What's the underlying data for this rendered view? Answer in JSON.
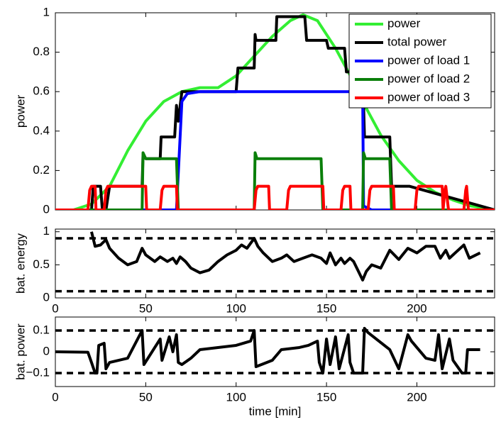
{
  "chart_data": [
    {
      "type": "line",
      "ylabel": "power",
      "xlim": [
        0,
        243
      ],
      "ylim": [
        0,
        1
      ],
      "xticks": [
        0,
        50,
        100,
        150,
        200
      ],
      "xtick_labels": false,
      "yticks": [
        0,
        0.2,
        0.4,
        0.6,
        0.8,
        1
      ],
      "legend": "upper right",
      "series": [
        {
          "name": "power",
          "color": "#33ee33",
          "x": [
            0,
            10,
            20,
            30,
            40,
            50,
            60,
            70,
            80,
            90,
            100,
            110,
            120,
            130,
            137,
            145,
            155,
            165,
            170,
            180,
            190,
            200,
            210,
            220,
            230,
            243
          ],
          "values": [
            0,
            0,
            0.03,
            0.12,
            0.3,
            0.45,
            0.55,
            0.6,
            0.62,
            0.62,
            0.68,
            0.78,
            0.88,
            0.96,
            0.99,
            0.96,
            0.82,
            0.65,
            0.55,
            0.38,
            0.25,
            0.15,
            0.09,
            0.05,
            0.02,
            0
          ]
        },
        {
          "name": "total power",
          "color": "#000000",
          "x": [
            0,
            20,
            21,
            25,
            26,
            28,
            30,
            48,
            48.5,
            50,
            58,
            58.5,
            66,
            67,
            68,
            70,
            100,
            101,
            110,
            110.5,
            111,
            122,
            122.5,
            138,
            139,
            150,
            151,
            160,
            161,
            170,
            171,
            185,
            186,
            196,
            243
          ],
          "values": [
            0,
            0,
            0.12,
            0.12,
            0,
            0,
            0.12,
            0.12,
            0.28,
            0.26,
            0.26,
            0.37,
            0.37,
            0.53,
            0.45,
            0.6,
            0.6,
            0.72,
            0.72,
            0.89,
            0.86,
            0.86,
            0.98,
            0.98,
            0.86,
            0.86,
            0.82,
            0.82,
            0.7,
            0.7,
            0.37,
            0.37,
            0.12,
            0.12,
            0
          ]
        },
        {
          "name": "power of load 1",
          "color": "#0000ff",
          "x": [
            0,
            67,
            70,
            73,
            80,
            170,
            170.5,
            175,
            243
          ],
          "values": [
            0,
            0,
            0.55,
            0.59,
            0.6,
            0.6,
            0.02,
            0,
            0
          ]
        },
        {
          "name": "power of load 2",
          "color": "#0a7f0a",
          "x": [
            0,
            48,
            48.5,
            50,
            67,
            68,
            110,
            110.5,
            111.5,
            147,
            148,
            170,
            170.5,
            171.5,
            185,
            186,
            243
          ],
          "values": [
            0,
            0,
            0.29,
            0.26,
            0.26,
            0,
            0,
            0.29,
            0.26,
            0.26,
            0,
            0,
            0.29,
            0.26,
            0.26,
            0,
            0
          ]
        },
        {
          "name": "power of load 3",
          "color": "#ff0000",
          "x": [
            0,
            18,
            19,
            20,
            22,
            22.5,
            27,
            28,
            29,
            50,
            50.5,
            58,
            59,
            60,
            67,
            67.5,
            110,
            111,
            112,
            118,
            118.5,
            128,
            129,
            130,
            148,
            148.5,
            158,
            159,
            160,
            163,
            163.5,
            173,
            174,
            175,
            187,
            187.5,
            199,
            200,
            201,
            214,
            214.5,
            215.5,
            216,
            217.5,
            226,
            227,
            227.5,
            228.5,
            243
          ],
          "values": [
            0,
            0,
            0.1,
            0.12,
            0.12,
            0,
            0,
            0.1,
            0.12,
            0.12,
            0,
            0,
            0.1,
            0.12,
            0.12,
            0,
            0,
            0.1,
            0.12,
            0.12,
            0,
            0,
            0.1,
            0.12,
            0.12,
            0,
            0,
            0.1,
            0.12,
            0.12,
            0,
            0,
            0.1,
            0.12,
            0.12,
            0,
            0,
            0.1,
            0.12,
            0.12,
            0,
            0.1,
            0.12,
            0,
            0,
            0.1,
            0.12,
            0,
            0
          ]
        }
      ]
    },
    {
      "type": "line",
      "ylabel": "bat. energy",
      "xlim": [
        0,
        243
      ],
      "ylim": [
        0,
        1.04
      ],
      "xticks": [
        0,
        50,
        100,
        150,
        200
      ],
      "xtick_labels": true,
      "yticks": [
        0,
        0.5,
        1
      ],
      "hlines": [
        0.9,
        0.1
      ],
      "series": [
        {
          "color": "#000000",
          "x": [
            20,
            22,
            25,
            28,
            30,
            35,
            40,
            45,
            48,
            50,
            55,
            58,
            62,
            65,
            67,
            69,
            72,
            75,
            80,
            85,
            90,
            95,
            100,
            103,
            106,
            110,
            112,
            115,
            120,
            125,
            128,
            132,
            137,
            142,
            147,
            150,
            152,
            155,
            158,
            160,
            163,
            165,
            170,
            172,
            175,
            180,
            185,
            190,
            195,
            200,
            205,
            210,
            213,
            216,
            218,
            222,
            226,
            229,
            235
          ],
          "values": [
            1.0,
            0.78,
            0.8,
            0.88,
            0.75,
            0.6,
            0.5,
            0.55,
            0.75,
            0.65,
            0.55,
            0.62,
            0.55,
            0.6,
            0.52,
            0.62,
            0.55,
            0.45,
            0.38,
            0.42,
            0.55,
            0.65,
            0.72,
            0.8,
            0.75,
            0.9,
            0.78,
            0.68,
            0.55,
            0.6,
            0.65,
            0.55,
            0.6,
            0.65,
            0.6,
            0.52,
            0.68,
            0.5,
            0.6,
            0.52,
            0.6,
            0.55,
            0.27,
            0.4,
            0.5,
            0.45,
            0.72,
            0.58,
            0.75,
            0.68,
            0.78,
            0.78,
            0.6,
            0.72,
            0.6,
            0.7,
            0.8,
            0.6,
            0.68
          ]
        }
      ]
    },
    {
      "type": "line",
      "ylabel": "bat. power",
      "xlabel": "time [min]",
      "xlim": [
        0,
        243
      ],
      "ylim": [
        -0.163,
        0.163
      ],
      "xticks": [
        0,
        50,
        100,
        150,
        200
      ],
      "xtick_labels": true,
      "yticks": [
        {
          "value": -0.1,
          "label": "−0.1"
        },
        0,
        0.1
      ],
      "hlines": [
        0.1,
        -0.1
      ],
      "series": [
        {
          "color": "#000000",
          "x": [
            0,
            18,
            20,
            22,
            23,
            24,
            27,
            28,
            30,
            40,
            48,
            49,
            58,
            59,
            63,
            65,
            67,
            68,
            70,
            75,
            80,
            90,
            100,
            108,
            110,
            111,
            120,
            125,
            135,
            140,
            145,
            146,
            148,
            150,
            152,
            155,
            157,
            162,
            163,
            165,
            170,
            171,
            173,
            185,
            190,
            195,
            197,
            205,
            210,
            212,
            214,
            218,
            220,
            225,
            227,
            228,
            235
          ],
          "values": [
            0,
            -0.002,
            -0.05,
            -0.1,
            -0.1,
            0.03,
            0.04,
            -0.08,
            -0.05,
            -0.03,
            0.1,
            -0.06,
            0.06,
            -0.04,
            0.07,
            0,
            0.08,
            -0.05,
            -0.06,
            -0.03,
            0.01,
            0.02,
            0.03,
            0.05,
            0.1,
            -0.07,
            -0.04,
            0.01,
            0.02,
            0.03,
            0.05,
            -0.05,
            -0.1,
            0.06,
            -0.06,
            0.07,
            -0.08,
            0.08,
            -0.05,
            -0.1,
            -0.1,
            0.11,
            0.09,
            0.01,
            -0.08,
            0.08,
            0.05,
            -0.03,
            -0.04,
            0.08,
            -0.08,
            0.06,
            -0.04,
            -0.1,
            -0.1,
            0.01,
            0.01
          ]
        }
      ]
    }
  ]
}
